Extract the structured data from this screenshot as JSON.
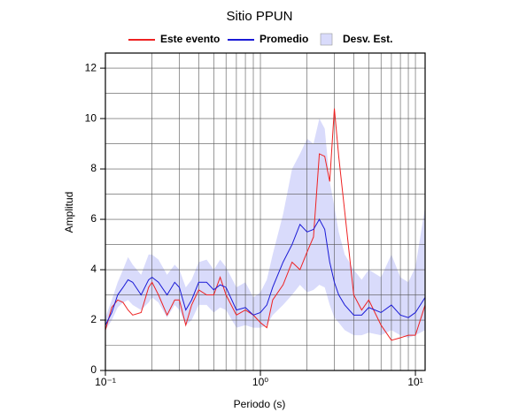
{
  "chart_data": {
    "type": "line",
    "title": "Sitio PPUN",
    "x_label": "Periodo (s)",
    "y_label": "Amplitud",
    "log_x": true,
    "grid": true,
    "xlim": [
      0.1,
      11.55
    ],
    "ylim": [
      0,
      12.6
    ],
    "xticks": [
      {
        "value": 0.1,
        "label": "10⁻¹"
      },
      {
        "value": 1,
        "label": "10⁰"
      },
      {
        "value": 10,
        "label": "10¹"
      }
    ],
    "yticks": [
      0,
      2,
      4,
      6,
      8,
      10,
      12
    ],
    "xgrid_minor": [
      0.2,
      0.3,
      0.4,
      0.5,
      0.6,
      0.7,
      0.8,
      0.9,
      2,
      3,
      4,
      5,
      6,
      7,
      8,
      9
    ],
    "ygrid_minor": [
      1,
      3,
      5,
      7,
      9,
      11
    ],
    "x": [
      0.1,
      0.11,
      0.12,
      0.13,
      0.14,
      0.15,
      0.17,
      0.19,
      0.2,
      0.22,
      0.25,
      0.28,
      0.3,
      0.33,
      0.36,
      0.4,
      0.45,
      0.5,
      0.55,
      0.6,
      0.7,
      0.8,
      0.9,
      1.0,
      1.1,
      1.2,
      1.4,
      1.6,
      1.8,
      2.0,
      2.2,
      2.4,
      2.6,
      2.8,
      3.0,
      3.2,
      3.5,
      4.0,
      4.5,
      5,
      6,
      7,
      8,
      9,
      10,
      11.55
    ],
    "band": {
      "name": "Desv. Est.",
      "color": "#d9dbfb",
      "lower": [
        1.6,
        2.0,
        2.5,
        2.7,
        2.8,
        2.6,
        2.4,
        2.7,
        2.9,
        2.7,
        2.1,
        2.6,
        2.4,
        1.8,
        2.0,
        2.6,
        2.6,
        2.3,
        2.5,
        2.4,
        1.7,
        1.8,
        1.7,
        1.7,
        1.8,
        2.2,
        2.6,
        3.0,
        3.4,
        3.1,
        3.2,
        3.4,
        3.3,
        2.6,
        2.1,
        1.9,
        1.6,
        1.4,
        1.4,
        1.5,
        1.4,
        1.6,
        1.4,
        1.3,
        1.4,
        1.6
      ],
      "upper": [
        2.1,
        2.8,
        3.5,
        4.0,
        4.5,
        4.2,
        3.8,
        4.6,
        4.6,
        4.4,
        3.8,
        4.2,
        4.0,
        3.3,
        3.6,
        4.3,
        4.4,
        4.0,
        4.4,
        4.1,
        3.3,
        3.5,
        2.9,
        3.1,
        3.6,
        4.6,
        6.2,
        8.0,
        8.6,
        9.2,
        9.0,
        10.0,
        9.6,
        7.5,
        6.5,
        5.5,
        4.6,
        4.0,
        3.6,
        4.0,
        3.7,
        4.6,
        3.7,
        3.5,
        4.1,
        6.5
      ]
    },
    "series": [
      {
        "name": "Este evento",
        "color": "#ee2222",
        "values": [
          1.6,
          2.5,
          2.8,
          2.7,
          2.4,
          2.2,
          2.3,
          3.3,
          3.5,
          3.0,
          2.2,
          2.8,
          2.8,
          1.8,
          2.6,
          3.2,
          3.0,
          3.0,
          3.7,
          3.0,
          2.2,
          2.4,
          2.2,
          1.9,
          1.7,
          2.8,
          3.4,
          4.3,
          4.0,
          4.7,
          5.3,
          8.6,
          8.5,
          7.5,
          10.4,
          8.5,
          6.3,
          3.0,
          2.4,
          2.8,
          1.8,
          1.2,
          1.3,
          1.4,
          1.4,
          2.6
        ]
      },
      {
        "name": "Promedio",
        "color": "#1a1ad6",
        "values": [
          1.8,
          2.3,
          3.0,
          3.3,
          3.6,
          3.5,
          3.0,
          3.6,
          3.7,
          3.5,
          3.0,
          3.5,
          3.3,
          2.4,
          2.8,
          3.5,
          3.5,
          3.2,
          3.4,
          3.3,
          2.4,
          2.5,
          2.2,
          2.3,
          2.6,
          3.3,
          4.3,
          5.0,
          5.8,
          5.5,
          5.6,
          6.0,
          5.6,
          4.3,
          3.5,
          3.0,
          2.6,
          2.2,
          2.2,
          2.5,
          2.3,
          2.6,
          2.2,
          2.1,
          2.3,
          2.9
        ]
      }
    ]
  }
}
